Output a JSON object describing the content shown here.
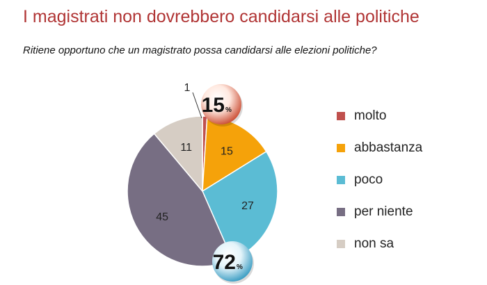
{
  "chart_data": {
    "type": "pie",
    "title": "I magistrati non dovrebbero candidarsi alle politiche",
    "subtitle": "Ritiene opportuno che un magistrato possa candidarsi alle elezioni politiche?",
    "categories": [
      "molto",
      "abbastanza",
      "poco",
      "per niente",
      "non sa"
    ],
    "values": [
      1,
      15,
      27,
      45,
      11
    ],
    "colors": [
      "#c0504d",
      "#f5a20a",
      "#5bbcd4",
      "#776e83",
      "#d6cdc4"
    ],
    "legend_position": "right",
    "annotations": [
      {
        "value": "15",
        "unit": "%",
        "color": "#d9714a"
      },
      {
        "value": "72",
        "unit": "%",
        "color": "#4aa9c6"
      }
    ]
  }
}
